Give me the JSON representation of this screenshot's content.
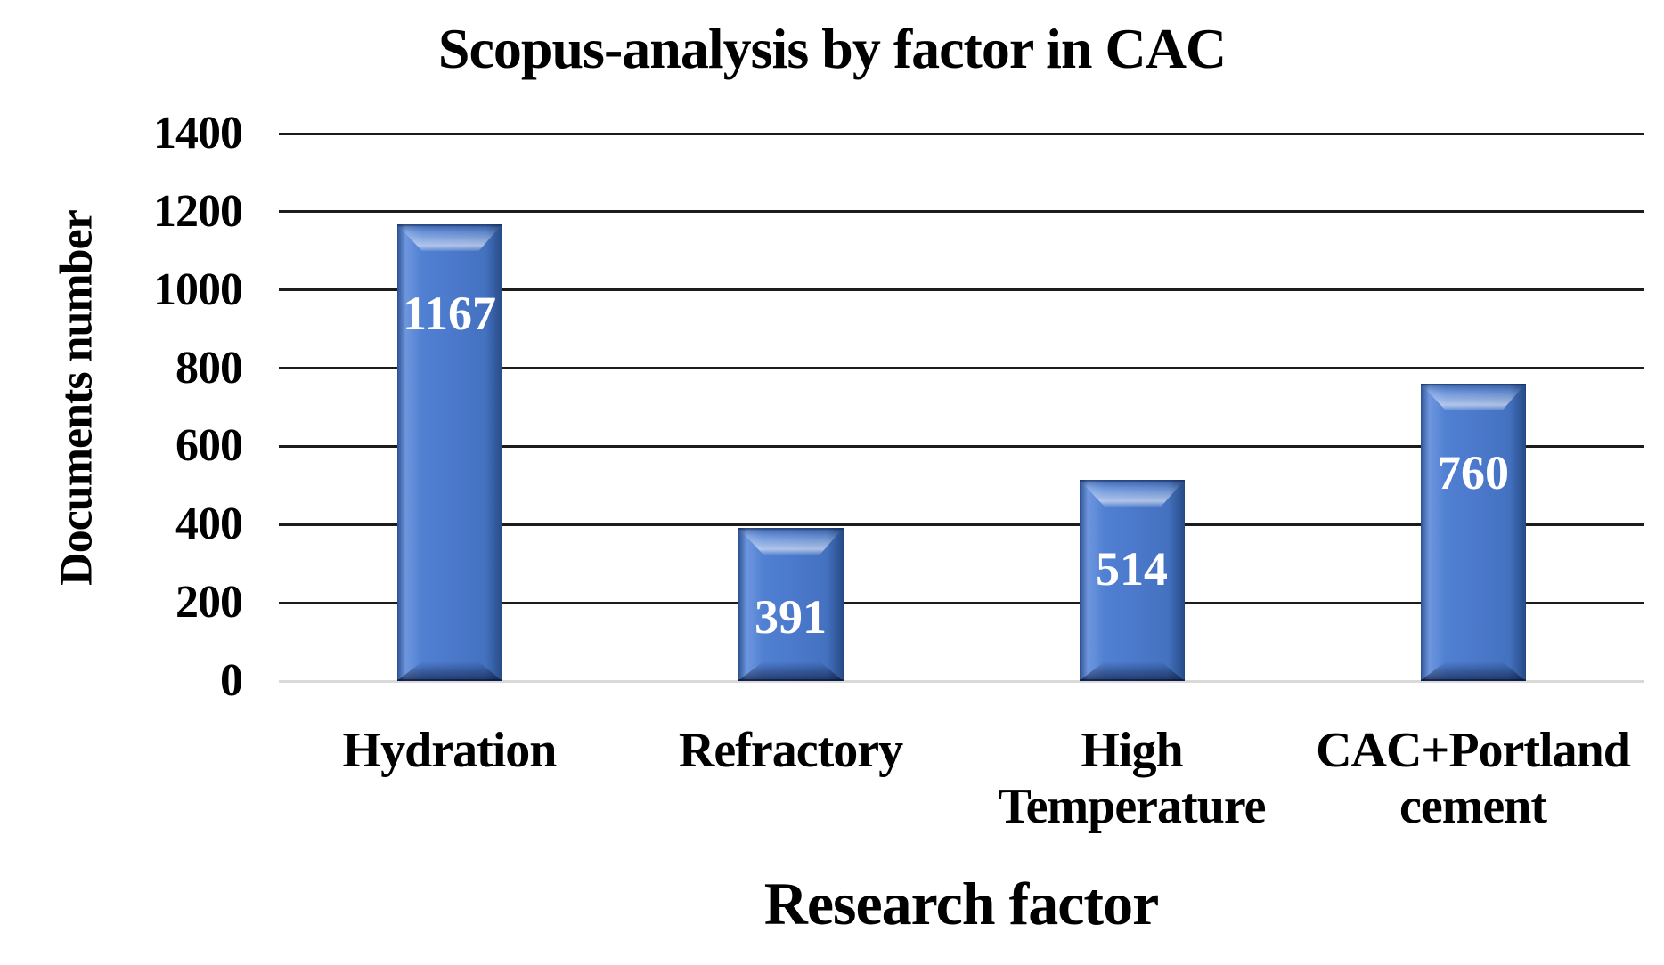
{
  "chart_data": {
    "type": "bar",
    "title": "Scopus-analysis by factor in CAC",
    "categories": [
      "Hydration",
      "Refractory",
      "High Temperature",
      "CAC+Portland cement"
    ],
    "categories_display": [
      "Hydration",
      "Refractory",
      "High\nTemperature",
      "CAC+Portland\ncement"
    ],
    "values": [
      1167,
      391,
      514,
      760
    ],
    "value_labels": [
      "1167",
      "391",
      "514",
      "760"
    ],
    "xlabel": "Research factor",
    "ylabel": "Documents number",
    "ylim": [
      0,
      1400
    ],
    "ytick_step": 200,
    "yticks": [
      "1400",
      "1200",
      "1000",
      "800",
      "600",
      "400",
      "200",
      "0"
    ],
    "grid": true,
    "legend": false,
    "colors": {
      "bar": "#4b78ca",
      "bar_edge": "#2e5494",
      "value_label": "#ffffff",
      "gridline": "#1c1c1c",
      "baseline": "#d9d9d9",
      "text": "#000000",
      "background": "#ffffff"
    }
  }
}
